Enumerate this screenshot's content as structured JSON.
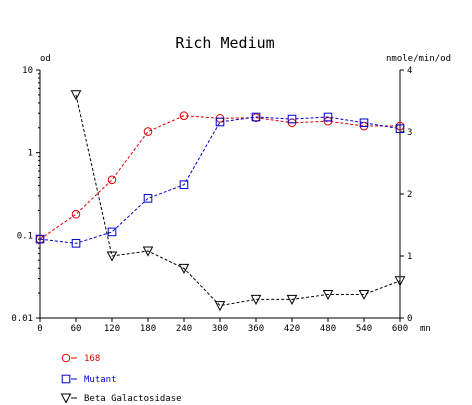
{
  "chart_data": {
    "type": "line",
    "title": "Rich Medium",
    "x_unit_label": "mn",
    "x": [
      0,
      60,
      120,
      180,
      240,
      300,
      360,
      420,
      480,
      540,
      600
    ],
    "x_ticks": [
      "0",
      "60",
      "120",
      "180",
      "240",
      "300",
      "360",
      "420",
      "480",
      "540",
      "600"
    ],
    "xlim": [
      0,
      600
    ],
    "y_left": {
      "label": "od",
      "scale": "log",
      "lim": [
        0.01,
        10
      ],
      "ticks": [
        "10",
        "1",
        "0.1",
        "0.01"
      ]
    },
    "y_right": {
      "label": "nmole/min/od",
      "scale": "linear",
      "lim": [
        0,
        4
      ],
      "ticks": [
        "4",
        "3",
        "2",
        "1",
        "0"
      ]
    },
    "grid": false,
    "legend_position": "bottom-left",
    "series": [
      {
        "name": "168",
        "axis": "left",
        "marker": "circle",
        "color": "#e00000",
        "x": [
          0,
          60,
          120,
          180,
          240,
          300,
          360,
          420,
          480,
          540,
          600
        ],
        "values": [
          0.09,
          0.18,
          0.47,
          1.8,
          2.8,
          2.6,
          2.65,
          2.3,
          2.4,
          2.1,
          2.1
        ]
      },
      {
        "name": "Mutant",
        "axis": "left",
        "marker": "square",
        "color": "#0000d0",
        "x": [
          0,
          60,
          120,
          180,
          240,
          300,
          360,
          420,
          480,
          540,
          600
        ],
        "values": [
          0.09,
          0.08,
          0.11,
          0.28,
          0.41,
          2.35,
          2.7,
          2.55,
          2.7,
          2.3,
          1.95
        ]
      },
      {
        "name": "Beta Galactosidase",
        "axis": "right",
        "marker": "triangle-down",
        "color": "#000000",
        "x": [
          60,
          120,
          180,
          240,
          300,
          360,
          420,
          480,
          540,
          600
        ],
        "values": [
          3.6,
          1.0,
          1.08,
          0.8,
          0.2,
          0.3,
          0.3,
          0.38,
          0.38,
          0.6
        ]
      }
    ]
  }
}
